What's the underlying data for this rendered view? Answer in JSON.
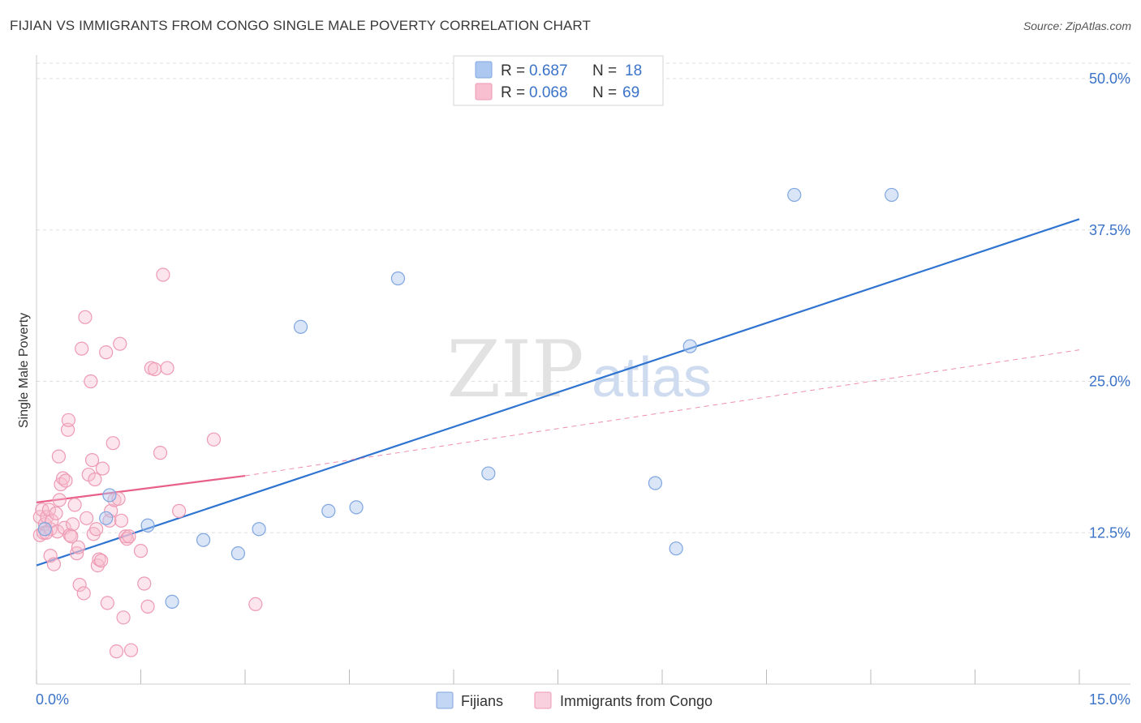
{
  "title": "FIJIAN VS IMMIGRANTS FROM CONGO SINGLE MALE POVERTY CORRELATION CHART",
  "source": "Source: ZipAtlas.com",
  "watermark": {
    "zip": "ZIP",
    "atlas": "atlas"
  },
  "legend_top": [
    {
      "r_label": "R =",
      "r_value": "0.687",
      "n_label": "N =",
      "n_value": "18",
      "swatch": "#adc8f0",
      "edge": "#7fa6e0"
    },
    {
      "r_label": "R =",
      "r_value": "0.068",
      "n_label": "N =",
      "n_value": "69",
      "swatch": "#f7bfd0",
      "edge": "#ee9ab4"
    }
  ],
  "legend_bottom": [
    {
      "label": "Fijians",
      "swatch": "#c3d6f4",
      "edge": "#7fa6e0"
    },
    {
      "label": "Immigrants from Congo",
      "swatch": "#f9d0dd",
      "edge": "#ee9ab4"
    }
  ],
  "colors": {
    "fijians_point": "#7fa6e0",
    "fijians_fill": "rgba(173,200,240,0.45)",
    "fijians_line": "#2f74d0",
    "congo_point": "#ee9ab4",
    "congo_fill": "rgba(247,191,208,0.40)",
    "congo_line": "#e8608a",
    "value_text": "#3b73c8",
    "grid": "#dddddd"
  },
  "chart_data": {
    "type": "scatter",
    "ylabel": "Single Male Poverty",
    "x_tick_labels": [
      "0.0%",
      "15.0%"
    ],
    "y_tick_labels": [
      "12.5%",
      "25.0%",
      "37.5%",
      "50.0%"
    ],
    "y_ticks": [
      12.5,
      25.0,
      37.5,
      50.0
    ],
    "xlim": [
      0,
      15
    ],
    "ylim": [
      0,
      50
    ],
    "grid": true,
    "series": [
      {
        "name": "Fijians",
        "points": [
          [
            0.12,
            12.8
          ],
          [
            1.0,
            13.7
          ],
          [
            1.05,
            15.6
          ],
          [
            1.6,
            13.1
          ],
          [
            2.4,
            11.9
          ],
          [
            1.95,
            6.8
          ],
          [
            2.9,
            10.8
          ],
          [
            3.2,
            12.8
          ],
          [
            3.8,
            29.5
          ],
          [
            4.2,
            14.3
          ],
          [
            4.6,
            14.6
          ],
          [
            5.2,
            33.5
          ],
          [
            6.5,
            17.4
          ],
          [
            8.9,
            16.6
          ],
          [
            9.2,
            11.2
          ],
          [
            9.4,
            27.9
          ],
          [
            10.9,
            40.4
          ],
          [
            12.3,
            40.4
          ]
        ],
        "trend": {
          "x0": 0.0,
          "y0": 9.8,
          "x1": 15.0,
          "y1": 38.4
        }
      },
      {
        "name": "Immigrants from Congo",
        "points": [
          [
            0.05,
            12.3
          ],
          [
            0.05,
            13.8
          ],
          [
            0.08,
            14.4
          ],
          [
            0.1,
            12.5
          ],
          [
            0.12,
            13.2
          ],
          [
            0.15,
            13.8
          ],
          [
            0.18,
            14.4
          ],
          [
            0.2,
            10.6
          ],
          [
            0.2,
            12.8
          ],
          [
            0.22,
            13.5
          ],
          [
            0.25,
            9.9
          ],
          [
            0.28,
            14.1
          ],
          [
            0.3,
            12.6
          ],
          [
            0.32,
            18.8
          ],
          [
            0.33,
            15.2
          ],
          [
            0.35,
            16.5
          ],
          [
            0.38,
            17.0
          ],
          [
            0.4,
            12.9
          ],
          [
            0.42,
            16.8
          ],
          [
            0.45,
            21.0
          ],
          [
            0.46,
            21.8
          ],
          [
            0.48,
            12.3
          ],
          [
            0.5,
            12.2
          ],
          [
            0.52,
            13.2
          ],
          [
            0.55,
            14.8
          ],
          [
            0.58,
            10.8
          ],
          [
            0.6,
            11.3
          ],
          [
            0.62,
            8.2
          ],
          [
            0.65,
            27.7
          ],
          [
            0.68,
            7.5
          ],
          [
            0.7,
            30.3
          ],
          [
            0.72,
            13.7
          ],
          [
            0.75,
            17.3
          ],
          [
            0.78,
            25.0
          ],
          [
            0.8,
            18.5
          ],
          [
            0.82,
            12.4
          ],
          [
            0.84,
            16.9
          ],
          [
            0.86,
            12.8
          ],
          [
            0.88,
            9.8
          ],
          [
            0.9,
            10.3
          ],
          [
            0.93,
            10.2
          ],
          [
            0.95,
            17.8
          ],
          [
            1.0,
            27.4
          ],
          [
            1.02,
            6.7
          ],
          [
            1.05,
            13.5
          ],
          [
            1.07,
            14.3
          ],
          [
            1.1,
            19.9
          ],
          [
            1.12,
            15.2
          ],
          [
            1.15,
            2.7
          ],
          [
            1.18,
            15.3
          ],
          [
            1.2,
            28.1
          ],
          [
            1.22,
            13.5
          ],
          [
            1.25,
            5.5
          ],
          [
            1.28,
            12.2
          ],
          [
            1.3,
            12.0
          ],
          [
            1.33,
            12.2
          ],
          [
            1.36,
            2.8
          ],
          [
            1.5,
            11.0
          ],
          [
            1.55,
            8.3
          ],
          [
            1.6,
            6.4
          ],
          [
            1.65,
            26.1
          ],
          [
            1.7,
            26.0
          ],
          [
            1.78,
            19.1
          ],
          [
            1.82,
            33.8
          ],
          [
            1.88,
            26.1
          ],
          [
            2.05,
            14.3
          ],
          [
            2.55,
            20.2
          ],
          [
            3.15,
            6.6
          ],
          [
            0.14,
            12.5
          ]
        ],
        "trend": {
          "x0": 0.0,
          "y0": 15.0,
          "x1": 3.0,
          "y1": 17.2,
          "dash_x1": 15.0,
          "dash_y1": 27.6
        }
      }
    ]
  }
}
